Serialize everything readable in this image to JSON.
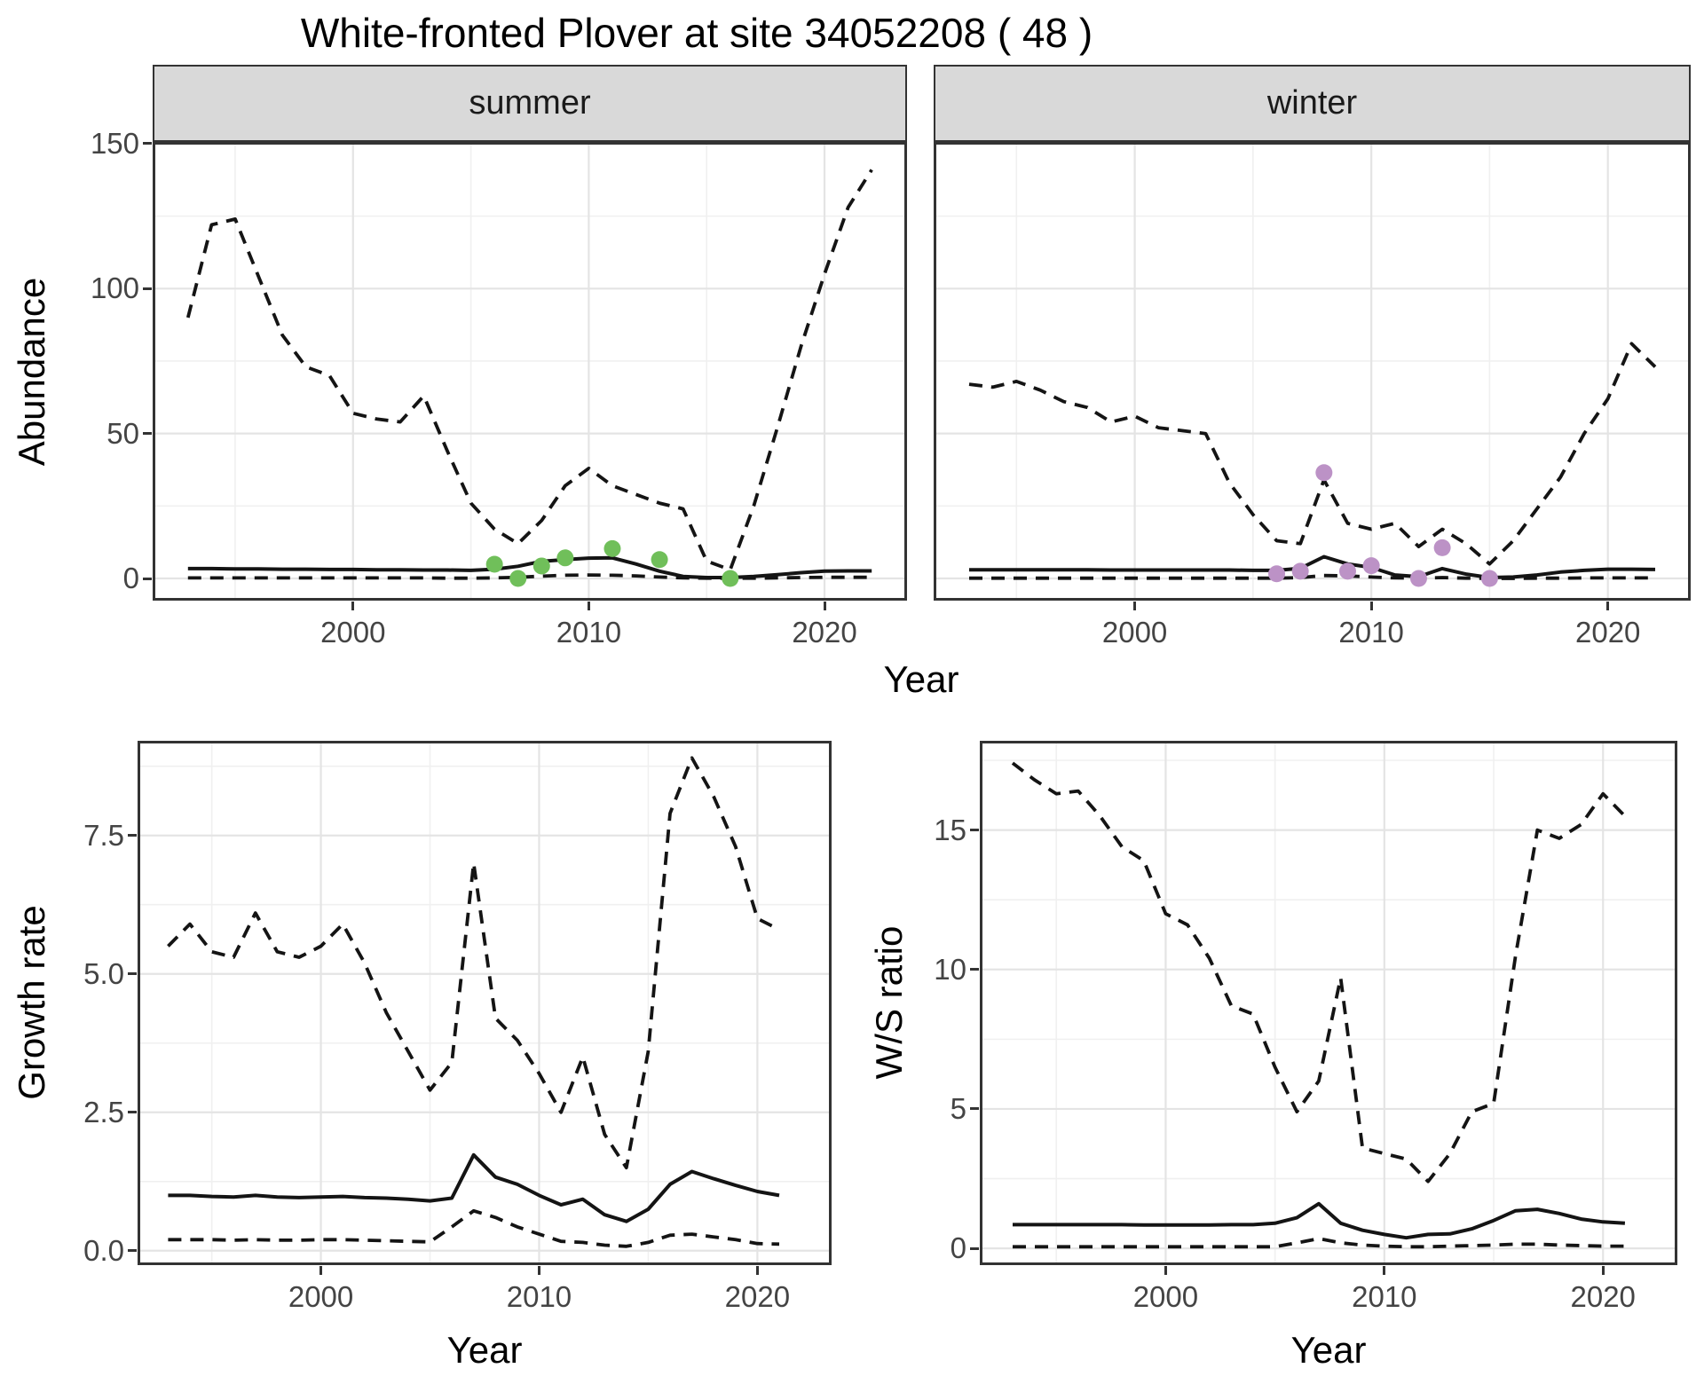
{
  "title": "White-fronted Plover at site 34052208 ( 48 )",
  "facets": {
    "summer": "summer",
    "winter": "winter"
  },
  "axis_titles": {
    "abundance": "Abundance",
    "growth_rate": "Growth rate",
    "ws_ratio": "W/S ratio",
    "year_top": "Year",
    "year_bottom_left": "Year",
    "year_bottom_right": "Year"
  },
  "colors": {
    "line": "#141414",
    "summer_points": "#70bf5a",
    "winter_points": "#bc92c6",
    "strip_bg": "#d9d9d9",
    "panel_border": "#333333",
    "grid_major": "#e4e4e4",
    "grid_minor": "#f0f0f0",
    "tick_text": "#444444"
  },
  "chart_data": [
    {
      "id": "abundance-summer",
      "type": "line",
      "facet_label": "summer",
      "ylabel": "Abundance",
      "xlabel": "Year",
      "xlim": [
        1991.5,
        2023.5
      ],
      "ylim": [
        -7.65,
        150.6
      ],
      "x_major_ticks": [
        2000,
        2010,
        2020
      ],
      "x_minor_ticks": [
        1995,
        2005,
        2015
      ],
      "x_tick_labels": [
        "2000",
        "2010",
        "2020"
      ],
      "y_major_ticks": [
        0,
        50,
        100,
        150
      ],
      "y_minor_ticks": [
        25,
        75,
        125
      ],
      "y_tick_labels": [
        "0",
        "50",
        "100",
        "150"
      ],
      "x": [
        1993,
        1994,
        1995,
        1996,
        1997,
        1998,
        1999,
        2000,
        2001,
        2002,
        2003,
        2004,
        2005,
        2006,
        2007,
        2008,
        2009,
        2010,
        2011,
        2012,
        2013,
        2014,
        2015,
        2016,
        2017,
        2018,
        2019,
        2020,
        2021,
        2022
      ],
      "series": [
        {
          "name": "upper_ci",
          "style": "dashed",
          "values": [
            90,
            122,
            124,
            104,
            84,
            73,
            70,
            57,
            55,
            54,
            63,
            44,
            26,
            17,
            12,
            20,
            32,
            38,
            32,
            29,
            26,
            24,
            6,
            3,
            25,
            52,
            80,
            105,
            128,
            141
          ]
        },
        {
          "name": "estimate",
          "style": "solid",
          "values": [
            3.4,
            3.4,
            3.3,
            3.3,
            3.2,
            3.2,
            3.1,
            3.1,
            3.0,
            3.0,
            2.9,
            2.9,
            2.8,
            3.2,
            4.2,
            5.9,
            6.5,
            7.0,
            7.1,
            5.0,
            2.5,
            0.7,
            0.3,
            0.3,
            0.7,
            1.3,
            2.0,
            2.5,
            2.6,
            2.6
          ]
        },
        {
          "name": "lower_ci",
          "style": "dashed",
          "values": [
            0.2,
            0.2,
            0.2,
            0.2,
            0.2,
            0.2,
            0.2,
            0.2,
            0.2,
            0.2,
            0.2,
            0.1,
            0.1,
            0.2,
            0.4,
            0.8,
            1.1,
            1.2,
            1.1,
            0.9,
            0.5,
            0.2,
            0.1,
            0.1,
            0.1,
            0.2,
            0.3,
            0.4,
            0.4,
            0.4
          ]
        }
      ],
      "points": {
        "name": "observed-counts-summer",
        "color": "#70bf5a",
        "data": [
          [
            2006,
            4.9
          ],
          [
            2007,
            0
          ],
          [
            2008,
            4.3
          ],
          [
            2009,
            7.1
          ],
          [
            2011,
            10.3
          ],
          [
            2013,
            6.5
          ],
          [
            2016,
            0
          ]
        ]
      }
    },
    {
      "id": "abundance-winter",
      "type": "line",
      "facet_label": "winter",
      "ylabel": "Abundance",
      "xlabel": "Year",
      "xlim": [
        1991.5,
        2023.5
      ],
      "ylim": [
        -7.65,
        150.6
      ],
      "x_major_ticks": [
        2000,
        2010,
        2020
      ],
      "x_minor_ticks": [
        1995,
        2005,
        2015
      ],
      "x_tick_labels": [
        "2000",
        "2010",
        "2020"
      ],
      "y_major_ticks": [
        0,
        50,
        100,
        150
      ],
      "y_minor_ticks": [
        25,
        75,
        125
      ],
      "y_tick_labels": [
        "0",
        "50",
        "100",
        "150"
      ],
      "x": [
        1993,
        1994,
        1995,
        1996,
        1997,
        1998,
        1999,
        2000,
        2001,
        2002,
        2003,
        2004,
        2005,
        2006,
        2007,
        2008,
        2009,
        2010,
        2011,
        2012,
        2013,
        2014,
        2015,
        2016,
        2017,
        2018,
        2019,
        2020,
        2021,
        2022
      ],
      "series": [
        {
          "name": "upper_ci",
          "style": "dashed",
          "values": [
            67,
            66,
            68,
            65,
            61,
            59,
            54,
            56,
            52,
            51,
            50,
            33,
            22,
            13,
            12,
            34,
            19,
            17,
            19,
            11,
            17,
            12,
            5,
            13,
            24,
            35,
            50,
            62,
            81,
            73
          ]
        },
        {
          "name": "estimate",
          "style": "solid",
          "values": [
            3.0,
            3.0,
            3.0,
            3.0,
            3.0,
            3.0,
            2.9,
            2.9,
            2.9,
            2.9,
            2.9,
            2.9,
            2.8,
            2.8,
            3.5,
            7.5,
            5.0,
            3.8,
            1.2,
            0.6,
            3.4,
            1.5,
            0.3,
            0.5,
            1.2,
            2.2,
            2.8,
            3.2,
            3.2,
            3.1
          ]
        },
        {
          "name": "lower_ci",
          "style": "dashed",
          "values": [
            0.1,
            0.1,
            0.1,
            0.1,
            0.1,
            0.1,
            0.1,
            0.1,
            0.1,
            0.1,
            0.1,
            0.1,
            0.1,
            0.1,
            0.3,
            1.0,
            0.9,
            0.5,
            0.2,
            0.1,
            0.3,
            0.1,
            0,
            0,
            0.1,
            0.1,
            0.2,
            0.2,
            0.2,
            0.2
          ]
        }
      ],
      "points": {
        "name": "observed-counts-winter",
        "color": "#bc92c6",
        "data": [
          [
            2006,
            1.6
          ],
          [
            2007,
            2.5
          ],
          [
            2008,
            36.5
          ],
          [
            2009,
            2.5
          ],
          [
            2010,
            4.4
          ],
          [
            2012,
            0
          ],
          [
            2013,
            10.6
          ],
          [
            2015,
            0
          ]
        ]
      }
    },
    {
      "id": "growth-rate",
      "type": "line",
      "facet_label": null,
      "ylabel": "Growth rate",
      "xlabel": "Year",
      "xlim": [
        1991.6,
        2023.4
      ],
      "ylim": [
        -0.26,
        9.21
      ],
      "x_major_ticks": [
        2000,
        2010,
        2020
      ],
      "x_minor_ticks": [
        1995,
        2005,
        2015
      ],
      "x_tick_labels": [
        "2000",
        "2010",
        "2020"
      ],
      "y_major_ticks": [
        0,
        2.5,
        5.0,
        7.5
      ],
      "y_minor_ticks": [
        1.25,
        3.75,
        6.25,
        8.75
      ],
      "y_tick_labels": [
        "0.0",
        "2.5",
        "5.0",
        "7.5"
      ],
      "x": [
        1993,
        1994,
        1995,
        1996,
        1997,
        1998,
        1999,
        2000,
        2001,
        2002,
        2003,
        2004,
        2005,
        2006,
        2007,
        2008,
        2009,
        2010,
        2011,
        2012,
        2013,
        2014,
        2015,
        2016,
        2017,
        2018,
        2019,
        2020,
        2021
      ],
      "series": [
        {
          "name": "upper_ci",
          "style": "dashed",
          "values": [
            5.5,
            5.9,
            5.4,
            5.3,
            6.1,
            5.4,
            5.3,
            5.5,
            5.9,
            5.2,
            4.3,
            3.6,
            2.9,
            3.4,
            7.0,
            4.2,
            3.8,
            3.2,
            2.5,
            3.5,
            2.1,
            1.5,
            3.6,
            7.9,
            8.9,
            8.2,
            7.3,
            6.0,
            5.8
          ]
        },
        {
          "name": "estimate",
          "style": "solid",
          "values": [
            1.0,
            1.0,
            0.98,
            0.97,
            1.0,
            0.97,
            0.96,
            0.97,
            0.98,
            0.96,
            0.95,
            0.93,
            0.9,
            0.95,
            1.73,
            1.33,
            1.2,
            1.0,
            0.83,
            0.93,
            0.65,
            0.53,
            0.75,
            1.2,
            1.43,
            1.3,
            1.18,
            1.07,
            1.0
          ]
        },
        {
          "name": "lower_ci",
          "style": "dashed",
          "values": [
            0.2,
            0.2,
            0.2,
            0.19,
            0.2,
            0.19,
            0.19,
            0.2,
            0.2,
            0.19,
            0.18,
            0.17,
            0.16,
            0.43,
            0.72,
            0.6,
            0.43,
            0.3,
            0.17,
            0.15,
            0.1,
            0.08,
            0.15,
            0.28,
            0.3,
            0.25,
            0.2,
            0.13,
            0.12
          ]
        }
      ],
      "points": null
    },
    {
      "id": "ws-ratio",
      "type": "line",
      "facet_label": null,
      "ylabel": "W/S ratio",
      "xlabel": "Year",
      "xlim": [
        1991.5,
        2023.4
      ],
      "ylim": [
        -0.6,
        18.2
      ],
      "x_major_ticks": [
        2000,
        2010,
        2020
      ],
      "x_minor_ticks": [
        1995,
        2005,
        2015
      ],
      "x_tick_labels": [
        "2000",
        "2010",
        "2020"
      ],
      "y_major_ticks": [
        0,
        5,
        10,
        15
      ],
      "y_minor_ticks": [
        2.5,
        7.5,
        12.5,
        17.5
      ],
      "y_tick_labels": [
        "0",
        "5",
        "10",
        "15"
      ],
      "x": [
        1993,
        1994,
        1995,
        1996,
        1997,
        1998,
        1999,
        2000,
        2001,
        2002,
        2003,
        2004,
        2005,
        2006,
        2007,
        2008,
        2009,
        2010,
        2011,
        2012,
        2013,
        2014,
        2015,
        2016,
        2017,
        2018,
        2019,
        2020,
        2021
      ],
      "series": [
        {
          "name": "upper_ci",
          "style": "dashed",
          "values": [
            17.4,
            16.8,
            16.3,
            16.4,
            15.5,
            14.4,
            13.9,
            12.0,
            11.6,
            10.4,
            8.7,
            8.4,
            6.5,
            4.9,
            6.0,
            9.7,
            3.6,
            3.4,
            3.2,
            2.4,
            3.4,
            4.9,
            5.2,
            10.5,
            15.0,
            14.7,
            15.2,
            16.3,
            15.5
          ]
        },
        {
          "name": "estimate",
          "style": "solid",
          "values": [
            0.85,
            0.85,
            0.85,
            0.85,
            0.85,
            0.85,
            0.84,
            0.84,
            0.84,
            0.84,
            0.85,
            0.85,
            0.9,
            1.1,
            1.6,
            0.9,
            0.65,
            0.5,
            0.38,
            0.5,
            0.52,
            0.7,
            1.0,
            1.35,
            1.4,
            1.25,
            1.05,
            0.95,
            0.9
          ]
        },
        {
          "name": "lower_ci",
          "style": "dashed",
          "values": [
            0.06,
            0.06,
            0.06,
            0.06,
            0.06,
            0.06,
            0.06,
            0.06,
            0.06,
            0.06,
            0.06,
            0.06,
            0.06,
            0.2,
            0.35,
            0.2,
            0.12,
            0.08,
            0.06,
            0.06,
            0.08,
            0.1,
            0.12,
            0.15,
            0.15,
            0.12,
            0.1,
            0.08,
            0.08
          ]
        }
      ],
      "points": null
    }
  ]
}
